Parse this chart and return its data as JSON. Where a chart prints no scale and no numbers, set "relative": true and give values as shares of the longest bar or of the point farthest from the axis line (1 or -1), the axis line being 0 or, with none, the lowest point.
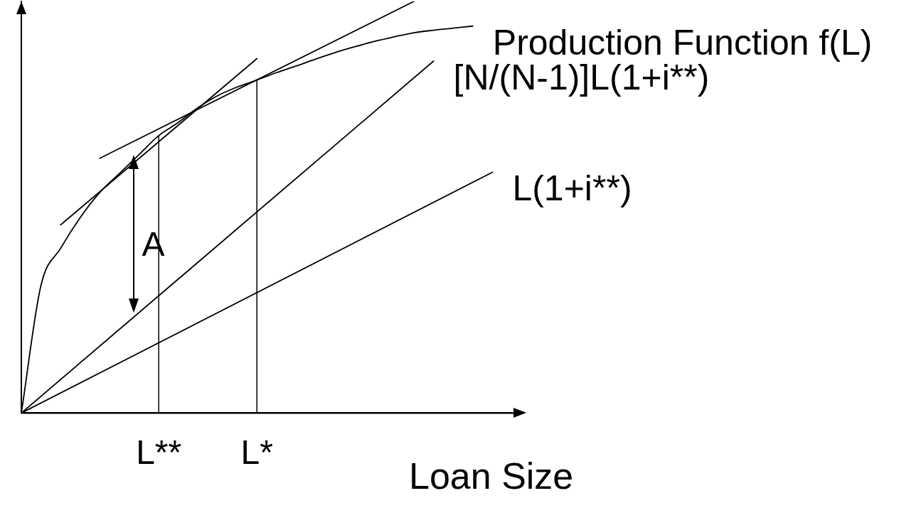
{
  "chart_data": {
    "type": "line",
    "relative": true,
    "xlabel": "Loan Size",
    "categories": [
      null,
      null,
      null,
      null,
      null,
      null,
      null,
      "L**",
      null,
      null,
      null,
      null,
      "L*",
      null,
      null,
      null,
      null,
      null,
      null,
      null,
      null,
      null,
      null,
      null,
      null,
      null
    ],
    "series": [
      {
        "name": "Production Function f(L)",
        "color": "#000000",
        "values": [
          0,
          0.31,
          0.4,
          0.475,
          0.536,
          0.582,
          0.628,
          0.674,
          0.706,
          0.742,
          0.771,
          0.792,
          0.809,
          0.827,
          0.843,
          0.86,
          0.876,
          0.89,
          0.903,
          0.914,
          0.924,
          0.93,
          0.935,
          0.94,
          null,
          null
        ]
      },
      {
        "name": "[N/(N-1)]L(1+i**)",
        "color": "#000000",
        "values": [
          0,
          null,
          null,
          null,
          null,
          null,
          null,
          null,
          null,
          null,
          null,
          null,
          null,
          null,
          null,
          null,
          null,
          null,
          null,
          null,
          null,
          0.855,
          null,
          null,
          null,
          null
        ]
      },
      {
        "name": "L(1+i**)",
        "color": "#000000",
        "values": [
          0,
          null,
          null,
          null,
          null,
          null,
          null,
          null,
          null,
          null,
          null,
          null,
          null,
          null,
          null,
          null,
          null,
          null,
          null,
          null,
          null,
          null,
          null,
          null,
          0.585,
          null
        ]
      },
      {
        "color": "#000000",
        "values": [
          null,
          null,
          0.457,
          null,
          null,
          null,
          null,
          null,
          null,
          null,
          null,
          null,
          0.861,
          null,
          null,
          null,
          null,
          null,
          null,
          null,
          null,
          null,
          null,
          null,
          null,
          null
        ]
      },
      {
        "color": "#000000",
        "values": [
          null,
          null,
          null,
          null,
          0.619,
          null,
          null,
          null,
          null,
          null,
          null,
          null,
          null,
          null,
          null,
          null,
          null,
          null,
          null,
          null,
          1,
          null,
          null,
          null,
          null,
          null
        ]
      }
    ],
    "ref_lines": [
      {
        "axis": "x",
        "value": "L**"
      },
      {
        "axis": "x",
        "value": "L*"
      }
    ],
    "annotations": [
      "A"
    ],
    "legend": false,
    "grid": false,
    "marker": "none",
    "line_style": "solid",
    "tick_labels": "x"
  }
}
